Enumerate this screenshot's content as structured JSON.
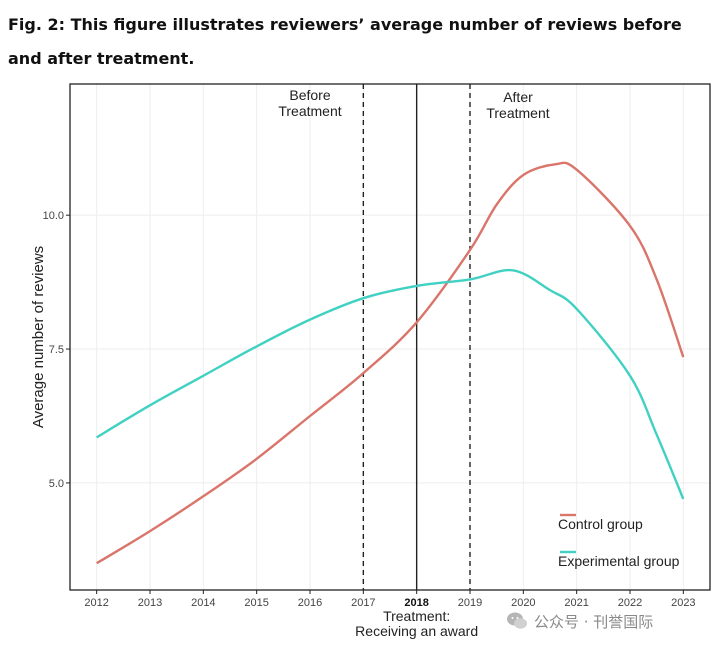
{
  "caption": "Fig. 2: This figure illustrates reviewers’ average number of reviews before and after treatment.",
  "watermark": "公众号 · 刊誉国际",
  "chart_data": {
    "type": "line",
    "title": "",
    "xlabel": "Treatment:\nReceiving an award",
    "ylabel": "Average number of reviews",
    "x": [
      2012,
      2013,
      2014,
      2015,
      2016,
      2017,
      2018,
      2019,
      2020,
      2021,
      2022,
      2023
    ],
    "xlim": [
      2011.5,
      2023.5
    ],
    "ylim": [
      3.0,
      12.45
    ],
    "yticks": [
      5.0,
      7.5,
      10.0
    ],
    "ytick_labels": [
      "5.0",
      "7.5",
      "10.0"
    ],
    "grid": true,
    "legend_position": "bottom-right",
    "series": [
      {
        "name": "Control group",
        "color": "#d9756a",
        "points": [
          [
            2012,
            3.5
          ],
          [
            2013,
            4.1
          ],
          [
            2014,
            4.75
          ],
          [
            2015,
            5.45
          ],
          [
            2016,
            6.25
          ],
          [
            2017,
            7.05
          ],
          [
            2018,
            8.0
          ],
          [
            2019,
            9.35
          ],
          [
            2019.5,
            10.2
          ],
          [
            2020,
            10.75
          ],
          [
            2020.6,
            10.95
          ],
          [
            2021,
            10.85
          ],
          [
            2022,
            9.8
          ],
          [
            2022.5,
            8.8
          ],
          [
            2023,
            7.35
          ]
        ]
      },
      {
        "name": "Experimental group",
        "color": "#40d1c3",
        "points": [
          [
            2012,
            5.85
          ],
          [
            2013,
            6.45
          ],
          [
            2014,
            7.0
          ],
          [
            2015,
            7.55
          ],
          [
            2016,
            8.05
          ],
          [
            2017,
            8.45
          ],
          [
            2018,
            8.68
          ],
          [
            2019,
            8.8
          ],
          [
            2019.8,
            8.97
          ],
          [
            2020.5,
            8.6
          ],
          [
            2021,
            8.25
          ],
          [
            2022,
            7.0
          ],
          [
            2022.5,
            5.9
          ],
          [
            2023,
            4.7
          ]
        ]
      }
    ],
    "vlines": [
      {
        "x": 2017,
        "style": "dashed",
        "label": "Before\nTreatment"
      },
      {
        "x": 2018,
        "style": "solid",
        "label": ""
      },
      {
        "x": 2019,
        "style": "dashed",
        "label": "After\nTreatment"
      }
    ]
  }
}
